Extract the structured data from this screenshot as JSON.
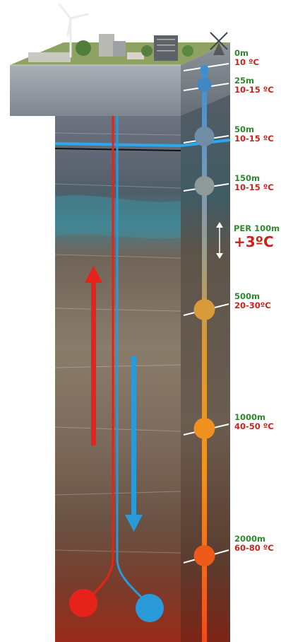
{
  "depth_labels": [
    {
      "depth": "0m",
      "temp": "10 ºC"
    },
    {
      "depth": "25m",
      "temp": "10-15 ºC"
    },
    {
      "depth": "50m",
      "temp": "10-15 ºC"
    },
    {
      "depth": "150m",
      "temp": "10-15 ºC"
    },
    {
      "depth": "500m",
      "temp": "20-30ºC"
    },
    {
      "depth": "1000m",
      "temp": "40-50 ºC"
    },
    {
      "depth": "2000m",
      "temp": "60-80 ºC"
    }
  ],
  "gradient": {
    "label": "PER 100m",
    "value": "+3ºC"
  },
  "colors": {
    "hot_pipe": "#e5231b",
    "cold_pipe": "#2a9ad8",
    "depth_text": "#2f8a2f",
    "temp_text": "#c8241c"
  },
  "icons": [
    "wind-turbine-icon",
    "windmill-icon",
    "building-icon",
    "tree-icon",
    "up-arrow-icon",
    "down-arrow-icon",
    "double-arrow-icon"
  ]
}
